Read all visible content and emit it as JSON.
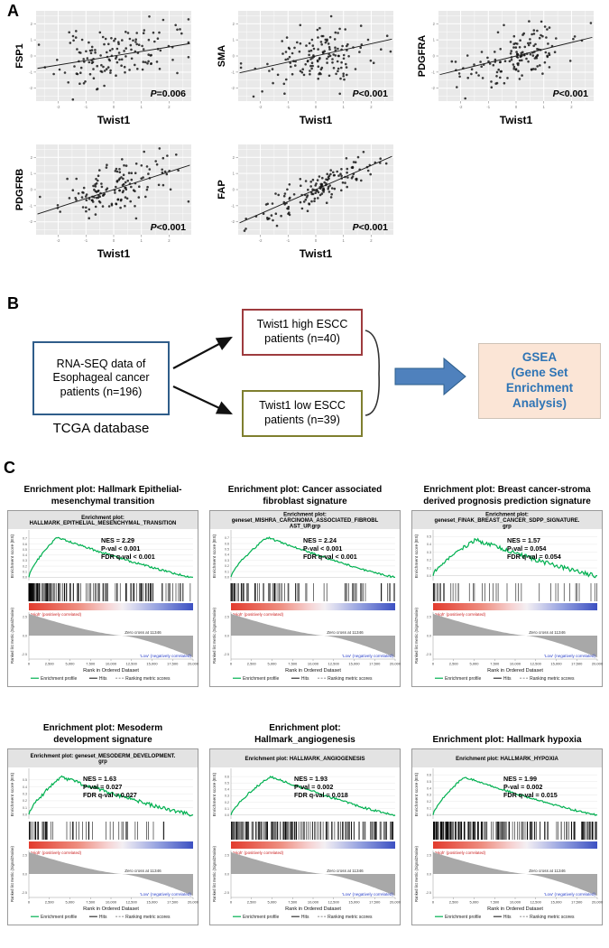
{
  "figure": {
    "panelA": {
      "label": "A",
      "xlabel": "Twist1",
      "plots": [
        {
          "gene": "FSP1",
          "p": "P=0.006",
          "seed": 11,
          "slope": 0.28,
          "noise": 0.85
        },
        {
          "gene": "SMA",
          "p": "P<0.001",
          "seed": 22,
          "slope": 0.38,
          "noise": 0.8
        },
        {
          "gene": "PDGFRA",
          "p": "P<0.001",
          "seed": 33,
          "slope": 0.42,
          "noise": 0.8
        },
        {
          "gene": "PDGFRB",
          "p": "P<0.001",
          "seed": 44,
          "slope": 0.55,
          "noise": 0.7
        },
        {
          "gene": "FAP",
          "p": "P<0.001",
          "seed": 55,
          "slope": 0.75,
          "noise": 0.5
        }
      ]
    },
    "panelB": {
      "label": "B",
      "source_box": "RNA-SEQ data of Esophageal cancer patients (n=196)",
      "source_caption": "TCGA database",
      "high_box": "Twist1 high ESCC patients (n=40)",
      "low_box": "Twist1 low ESCC patients (n=39)",
      "result_box_lines": [
        "GSEA",
        "(Gene Set",
        "Enrichment",
        "Analysis)"
      ]
    },
    "panelC": {
      "label": "C",
      "xlabel": "Rank in Ordered Dataset",
      "es_ylabel": "Enrichment score (ES)",
      "metric_ylabel": "Ranked list metric (Signal2Noise)",
      "high_label": "'High' (positively correlated)",
      "low_label": "'Low' (negatively correlated)",
      "zero_cross": "Zero cross at 11346",
      "legend": [
        "Enrichment profile",
        "Hits",
        "Ranking metric scores"
      ],
      "xticks": [
        "0",
        "2,500",
        "5,000",
        "7,500",
        "10,000",
        "12,500",
        "15,000",
        "17,500",
        "20,000"
      ],
      "plots": [
        {
          "title_lines": [
            "Enrichment plot: Hallmark Epithelial-",
            "mesenchymal transition"
          ],
          "header_lines": [
            "Enrichment plot:",
            "HALLMARK_EPITHELIAL_MESENCHYMAL_TRANSITION"
          ],
          "nes": "NES = 2.29",
          "pval": "P-val < 0.001",
          "fdr": "FDR q-val < 0.001",
          "peakX": 0.17,
          "peakY": 0.72,
          "jag": 0.05,
          "nhits": 150,
          "bias": 2.0,
          "seed": 901,
          "statsX": 104
        },
        {
          "title_lines": [
            "Enrichment plot: Cancer associated",
            "fibroblast signature"
          ],
          "header_lines": [
            "Enrichment plot:",
            "geneset_MISHRA_CARCINOMA_ASSOCIATED_FIBROBL",
            "AST_UP.grp"
          ],
          "nes": "NES = 2.24",
          "pval": "P-val < 0.001",
          "fdr": "FDR q-val < 0.001",
          "peakX": 0.22,
          "peakY": 0.71,
          "jag": 0.05,
          "nhits": 80,
          "bias": 1.9,
          "seed": 902,
          "statsX": 104
        },
        {
          "title_lines": [
            "Enrichment plot: Breast cancer-stroma",
            "derived prognosis prediction signature"
          ],
          "header_lines": [
            "Enrichment plot:",
            "geneset_FINAK_BREAST_CANCER_SDPP_SIGNATURE.",
            "grp"
          ],
          "nes": "NES = 1.57",
          "pval": "P-val = 0.054",
          "fdr": "FDR q-val = 0.054",
          "peakX": 0.26,
          "peakY": 0.46,
          "jag": 0.12,
          "nhits": 40,
          "bias": 1.5,
          "seed": 903,
          "statsX": 106
        },
        {
          "title_lines": [
            "Enrichment plot: Mesoderm",
            "development signature"
          ],
          "header_lines": [
            "Enrichment plot: geneset_MESODERM_DEVELOPMENT.",
            "grp"
          ],
          "nes": "NES = 1.63",
          "pval": "P-val = 0.027",
          "fdr": "FDR q-val = 0.027",
          "peakX": 0.2,
          "peakY": 0.54,
          "jag": 0.1,
          "nhits": 55,
          "bias": 1.7,
          "seed": 904,
          "statsX": 84
        },
        {
          "title_lines": [
            "Enrichment plot:",
            "Hallmark_angiogenesis"
          ],
          "header_lines": [
            "Enrichment plot: HALLMARK_ANGIOGENESIS"
          ],
          "nes": "NES = 1.93",
          "pval": "P-val = 0.002",
          "fdr": "FDR q-val = 0.018",
          "peakX": 0.24,
          "peakY": 0.6,
          "jag": 0.06,
          "nhits": 170,
          "bias": 1.35,
          "seed": 905,
          "statsX": 94
        },
        {
          "title_lines": [
            "Enrichment plot: Hallmark hypoxia"
          ],
          "header_lines": [
            "Enrichment plot: HALLMARK_HYPOXIA"
          ],
          "nes": "NES = 1.99",
          "pval": "P-val = 0.002",
          "fdr": "FDR q-val = 0.015",
          "peakX": 0.19,
          "peakY": 0.57,
          "jag": 0.05,
          "nhits": 190,
          "bias": 1.45,
          "seed": 906,
          "statsX": 102
        }
      ]
    }
  },
  "chart_data": [
    {
      "type": "scatter",
      "x_var": "Twist1",
      "y_var": "FSP1",
      "annotation": "P=0.006",
      "trend": "positive linear fit"
    },
    {
      "type": "scatter",
      "x_var": "Twist1",
      "y_var": "SMA",
      "annotation": "P<0.001",
      "trend": "positive linear fit"
    },
    {
      "type": "scatter",
      "x_var": "Twist1",
      "y_var": "PDGFRA",
      "annotation": "P<0.001",
      "trend": "positive linear fit"
    },
    {
      "type": "scatter",
      "x_var": "Twist1",
      "y_var": "PDGFRB",
      "annotation": "P<0.001",
      "trend": "positive linear fit"
    },
    {
      "type": "scatter",
      "x_var": "Twist1",
      "y_var": "FAP",
      "annotation": "P<0.001",
      "trend": "positive linear fit, steep"
    },
    {
      "type": "line",
      "subtype": "GSEA",
      "title": "Enrichment plot: Hallmark Epithelial-mesenchymal transition",
      "geneset": "HALLMARK_EPITHELIAL_MESENCHYMAL_TRANSITION",
      "NES": 2.29,
      "P_val": "<0.001",
      "FDR_q_val": "<0.001",
      "es_peak": 0.72,
      "zero_cross": 11346,
      "x_range": [
        0,
        20000
      ],
      "xlabel": "Rank in Ordered Dataset",
      "ylabel": "Enrichment score (ES)"
    },
    {
      "type": "line",
      "subtype": "GSEA",
      "title": "Enrichment plot: Cancer associated fibroblast signature",
      "geneset": "geneset_MISHRA_CARCINOMA_ASSOCIATED_FIBROBLAST_UP.grp",
      "NES": 2.24,
      "P_val": "<0.001",
      "FDR_q_val": "<0.001",
      "es_peak": 0.71,
      "zero_cross": 11346,
      "x_range": [
        0,
        20000
      ],
      "xlabel": "Rank in Ordered Dataset",
      "ylabel": "Enrichment score (ES)"
    },
    {
      "type": "line",
      "subtype": "GSEA",
      "title": "Enrichment plot: Breast cancer-stroma derived prognosis prediction signature",
      "geneset": "geneset_FINAK_BREAST_CANCER_SDPP_SIGNATURE.grp",
      "NES": 1.57,
      "P_val": "0.054",
      "FDR_q_val": "0.054",
      "es_peak": 0.46,
      "zero_cross": 11346,
      "x_range": [
        0,
        20000
      ],
      "xlabel": "Rank in Ordered Dataset",
      "ylabel": "Enrichment score (ES)"
    },
    {
      "type": "line",
      "subtype": "GSEA",
      "title": "Enrichment plot: Mesoderm development signature",
      "geneset": "geneset_MESODERM_DEVELOPMENT.grp",
      "NES": 1.63,
      "P_val": "0.027",
      "FDR_q_val": "0.027",
      "es_peak": 0.54,
      "zero_cross": 11346,
      "x_range": [
        0,
        20000
      ],
      "xlabel": "Rank in Ordered Dataset",
      "ylabel": "Enrichment score (ES)"
    },
    {
      "type": "line",
      "subtype": "GSEA",
      "title": "Enrichment plot: Hallmark_angiogenesis",
      "geneset": "HALLMARK_ANGIOGENESIS",
      "NES": 1.93,
      "P_val": "0.002",
      "FDR_q_val": "0.018",
      "es_peak": 0.6,
      "zero_cross": 11346,
      "x_range": [
        0,
        20000
      ],
      "xlabel": "Rank in Ordered Dataset",
      "ylabel": "Enrichment score (ES)"
    },
    {
      "type": "line",
      "subtype": "GSEA",
      "title": "Enrichment plot: Hallmark hypoxia",
      "geneset": "HALLMARK_HYPOXIA",
      "NES": 1.99,
      "P_val": "0.002",
      "FDR_q_val": "0.015",
      "es_peak": 0.57,
      "zero_cross": 11346,
      "x_range": [
        0,
        20000
      ],
      "xlabel": "Rank in Ordered Dataset",
      "ylabel": "Enrichment score (ES)"
    }
  ]
}
